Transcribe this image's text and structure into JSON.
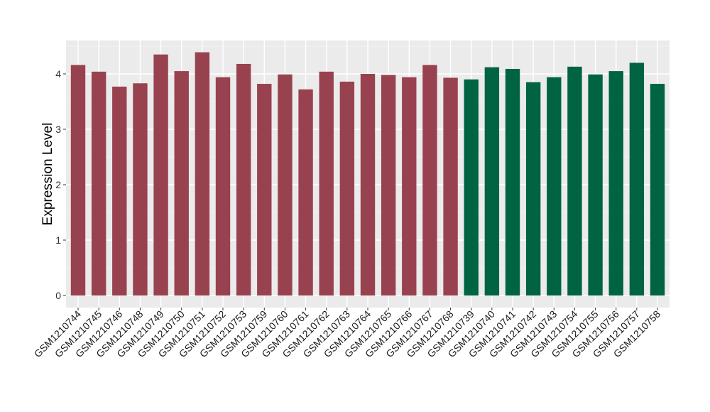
{
  "chart_data": {
    "type": "bar",
    "ylabel": "Expression Level",
    "xlabel": "",
    "ylim": [
      0,
      4.55
    ],
    "yticks": [
      0,
      1,
      2,
      3,
      4
    ],
    "grid": true,
    "background": "#ebebeb",
    "categories": [
      "GSM1210744",
      "GSM1210745",
      "GSM1210746",
      "GSM1210748",
      "GSM1210749",
      "GSM1210750",
      "GSM1210751",
      "GSM1210752",
      "GSM1210753",
      "GSM1210759",
      "GSM1210760",
      "GSM1210761",
      "GSM1210762",
      "GSM1210763",
      "GSM1210764",
      "GSM1210765",
      "GSM1210766",
      "GSM1210767",
      "GSM1210768",
      "GSM1210739",
      "GSM1210740",
      "GSM1210741",
      "GSM1210742",
      "GSM1210743",
      "GSM1210754",
      "GSM1210755",
      "GSM1210756",
      "GSM1210757",
      "GSM1210758"
    ],
    "values": [
      4.16,
      4.04,
      3.77,
      3.83,
      4.35,
      4.05,
      4.39,
      3.94,
      4.18,
      3.82,
      3.99,
      3.72,
      4.04,
      3.86,
      4.0,
      3.98,
      3.94,
      4.16,
      3.93,
      3.9,
      4.12,
      4.09,
      3.85,
      3.94,
      4.13,
      3.99,
      4.05,
      4.2,
      3.82
    ],
    "bar_colors": [
      "#99424f",
      "#99424f",
      "#99424f",
      "#99424f",
      "#99424f",
      "#99424f",
      "#99424f",
      "#99424f",
      "#99424f",
      "#99424f",
      "#99424f",
      "#99424f",
      "#99424f",
      "#99424f",
      "#99424f",
      "#99424f",
      "#99424f",
      "#99424f",
      "#99424f",
      "#006443",
      "#006443",
      "#006443",
      "#006443",
      "#006443",
      "#006443",
      "#006443",
      "#006443",
      "#006443",
      "#006443"
    ]
  }
}
